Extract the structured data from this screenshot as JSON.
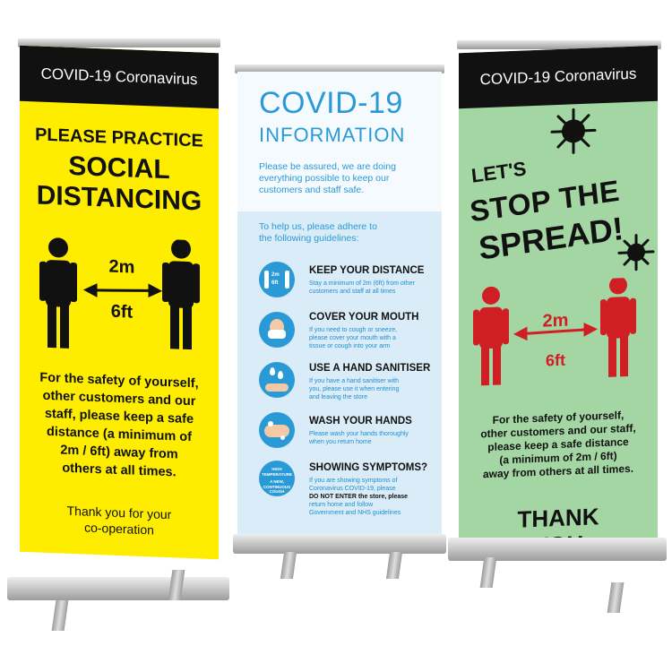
{
  "colors": {
    "yellow": "#ffed00",
    "green": "#a4d6a4",
    "blue": "#2a9ad6",
    "red": "#cf1f24",
    "black": "#111111"
  },
  "left_banner": {
    "header": "COVID-19  Coronavirus",
    "title1": "PLEASE PRACTICE",
    "title2": "SOCIAL",
    "title3": "DISTANCING",
    "dist_m": "2m",
    "dist_ft": "6ft",
    "body": [
      "For the safety of yourself,",
      "other customers and our",
      "staff, please keep a safe",
      "distance (a minimum of",
      "2m / 6ft) away from",
      "others at all times."
    ],
    "thanks": [
      "Thank you for your",
      "co-operation"
    ]
  },
  "middle_banner": {
    "title1": "COVID-19",
    "title2": "INFORMATION",
    "assure": [
      "Please be assured, we are doing",
      "everything possible to keep our",
      "customers and staff safe."
    ],
    "help": [
      "To help us, please adhere to",
      "the following guidelines:"
    ],
    "guidelines": [
      {
        "icon": "distance-icon",
        "title": "KEEP YOUR DISTANCE",
        "desc": [
          "Stay a minimum of 2m (6ft) from other",
          "customers and staff at all times"
        ],
        "icon_text": [
          "2m",
          "6ft"
        ]
      },
      {
        "icon": "mask-icon",
        "title": "COVER YOUR MOUTH",
        "desc": [
          "If you need to cough or sneeze,",
          "please cover your mouth with a",
          "tissue or cough into your arm"
        ]
      },
      {
        "icon": "sanitiser-icon",
        "title": "USE A HAND SANITISER",
        "desc": [
          "If you have a hand sanitiser with",
          "you, please use it when entering",
          "and leaving the store"
        ]
      },
      {
        "icon": "wash-hands-icon",
        "title": "WASH YOUR HANDS",
        "desc": [
          "Please wash your hands thoroughly",
          "when you return home"
        ]
      },
      {
        "icon": "symptoms-icon",
        "title": "SHOWING SYMPTOMS?",
        "desc": [
          "If you are showing symptoms of",
          "Coronavirus COVID-19, please",
          "DO NOT ENTER the store, please",
          "return home and follow",
          "Government and NHS guidelines"
        ],
        "icon_text": [
          "HIGH",
          "TEMPERATURE",
          "A NEW,",
          "CONTINUOUS",
          "COUGH"
        ]
      }
    ]
  },
  "right_banner": {
    "header": "COVID-19  Coronavirus",
    "lets": "LET'S",
    "stop": "STOP THE",
    "spread": "SPREAD!",
    "dist_m": "2m",
    "dist_ft": "6ft",
    "body": [
      "For the safety of yourself,",
      "other customers and our staff,",
      "please keep a safe distance",
      "(a minimum of 2m / 6ft)",
      "away from others at all times."
    ],
    "thank": "THANK",
    "you": "YOU"
  }
}
